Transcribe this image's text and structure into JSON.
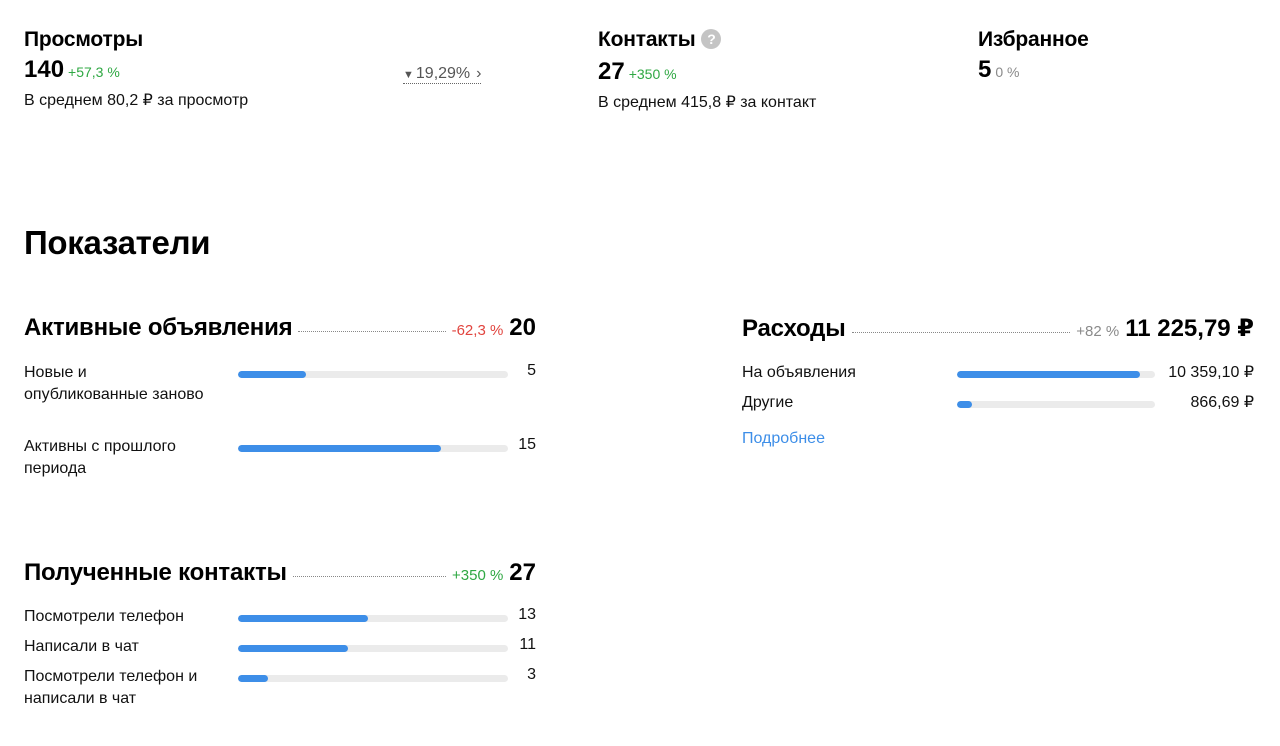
{
  "metrics": {
    "views": {
      "title": "Просмотры",
      "value": "140",
      "change": "+57,3 %",
      "subtitle": "В среднем 80,2 ₽ за просмотр",
      "conversion": "19,29%"
    },
    "contacts": {
      "title": "Контакты",
      "help": "?",
      "value": "27",
      "change": "+350 %",
      "subtitle": "В среднем 415,8 ₽ за контакт"
    },
    "favorites": {
      "title": "Избранное",
      "value": "5",
      "change": "0 %"
    }
  },
  "indicators_title": "Показатели",
  "active_ads": {
    "title": "Активные объявления",
    "change": "-62,3 %",
    "total": "20",
    "rows": [
      {
        "label": "Новые и опубликованные заново",
        "value": "5",
        "fraction": 0.25
      },
      {
        "label": "Активны с прошлого периода",
        "value": "15",
        "fraction": 0.75
      }
    ]
  },
  "expenses": {
    "title": "Расходы",
    "change": "+82 %",
    "total": "11 225,79 ₽",
    "rows": [
      {
        "label": "На объявления",
        "value": "10 359,10 ₽",
        "fraction": 0.923
      },
      {
        "label": "Другие",
        "value": "866,69 ₽",
        "fraction": 0.077
      }
    ],
    "more_link": "Подробнее"
  },
  "received_contacts": {
    "title": "Полученные контакты",
    "change": "+350 %",
    "total": "27",
    "rows": [
      {
        "label": "Посмотрели телефон",
        "value": "13",
        "fraction": 0.481
      },
      {
        "label": "Написали в чат",
        "value": "11",
        "fraction": 0.407
      },
      {
        "label": "Посмотрели телефон и написали в чат",
        "value": "3",
        "fraction": 0.111
      }
    ]
  },
  "colors": {
    "accent": "#3d8ee8",
    "positive": "#2fa843",
    "negative": "#e1453f",
    "track": "#ebebeb"
  }
}
